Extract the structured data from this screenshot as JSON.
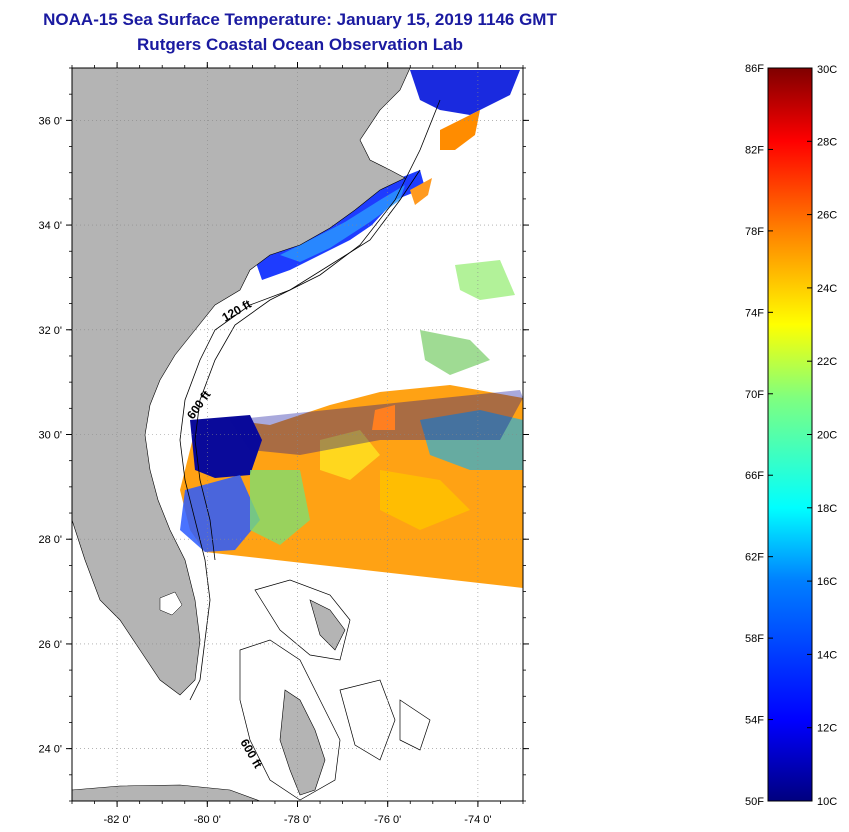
{
  "header": {
    "title": "NOAA-15 Sea Surface Temperature:  January 15, 2019 1146 GMT",
    "subtitle": "Rutgers Coastal Ocean Observation Lab"
  },
  "axes": {
    "lat_labels": [
      "36 0'",
      "34 0'",
      "32 0'",
      "30 0'",
      "28 0'",
      "26 0'",
      "24 0'"
    ],
    "lat_values": [
      36,
      34,
      32,
      30,
      28,
      26,
      24
    ],
    "lon_labels": [
      "-82 0'",
      "-80 0'",
      "-78 0'",
      "-76 0'",
      "-74 0'"
    ],
    "lon_values": [
      -82,
      -80,
      -78,
      -76,
      -74
    ],
    "lat_range": [
      23,
      37
    ],
    "lon_range": [
      -83,
      -73
    ]
  },
  "contours": {
    "depth_120": "120 ft",
    "depth_600_north": "600 ft",
    "depth_600_south": "600 ft"
  },
  "colorbar": {
    "fahrenheit_labels": [
      "86F",
      "82F",
      "78F",
      "74F",
      "70F",
      "66F",
      "62F",
      "58F",
      "54F",
      "50F"
    ],
    "celsius_labels": [
      "30C",
      "28C",
      "26C",
      "24C",
      "22C",
      "20C",
      "18C",
      "16C",
      "14C",
      "12C",
      "10C"
    ],
    "celsius_range": [
      10,
      30
    ],
    "colors": [
      "#00007f",
      "#0000ff",
      "#007fff",
      "#00ffff",
      "#7fff7f",
      "#ffff00",
      "#ff7f00",
      "#ff0000",
      "#7f0000"
    ]
  },
  "colors": {
    "land": "#b4b4b4",
    "ocean": "#ffffff",
    "title": "#1a1aa0"
  }
}
